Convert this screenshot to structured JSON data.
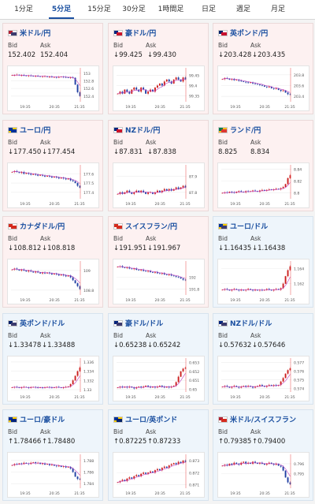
{
  "tabs": [
    {
      "label": "1分足",
      "active": false
    },
    {
      "label": "5分足",
      "active": true
    },
    {
      "label": "15分足",
      "active": false
    },
    {
      "label": "30分足",
      "active": false
    },
    {
      "label": "1時間足",
      "active": false
    },
    {
      "label": "日足",
      "active": false
    },
    {
      "label": "週足",
      "active": false
    },
    {
      "label": "月足",
      "active": false
    }
  ],
  "labels": {
    "bid": "Bid",
    "ask": "Ask"
  },
  "x_ticks": [
    "19:35",
    "20:35",
    "21:35"
  ],
  "colors": {
    "up_candle": "#cc1e1e",
    "down_candle": "#1f3fa3",
    "ma_line": "#c040c0",
    "current_line": "#e84a4a"
  },
  "pairs": [
    {
      "name": "米ドル/円",
      "bid": "152.402",
      "ask": "152.404",
      "direction": "none",
      "bg": "down",
      "flag": [
        "#b22234",
        "#ffffff",
        "#3c3b6e"
      ],
      "chart_data": {
        "type": "candlestick",
        "y_ticks": [
          "153",
          "152.8",
          "152.6",
          "152.4"
        ],
        "ylim": [
          152.25,
          153.1
        ],
        "trend": [
          152.95,
          152.95,
          152.96,
          152.94,
          152.95,
          152.94,
          152.93,
          152.94,
          152.93,
          152.92,
          152.93,
          152.92,
          152.91,
          152.92,
          152.92,
          152.9,
          152.91,
          152.9,
          152.9,
          152.89,
          152.9,
          152.91,
          152.9,
          152.89,
          152.88,
          152.89,
          152.88,
          152.7,
          152.5,
          152.4
        ]
      }
    },
    {
      "name": "豪ドル/円",
      "bid": "99.425",
      "ask": "99.430",
      "direction": "down",
      "bg": "down",
      "flag": [
        "#00247d",
        "#ffffff",
        "#cc142b"
      ],
      "chart_data": {
        "type": "candlestick",
        "y_ticks": [
          "99.45",
          "99.4",
          "99.35"
        ],
        "ylim": [
          99.32,
          99.48
        ],
        "trend": [
          99.36,
          99.37,
          99.36,
          99.38,
          99.37,
          99.36,
          99.38,
          99.39,
          99.38,
          99.37,
          99.39,
          99.38,
          99.36,
          99.37,
          99.38,
          99.37,
          99.39,
          99.4,
          99.41,
          99.4,
          99.42,
          99.43,
          99.42,
          99.41,
          99.43,
          99.44,
          99.43,
          99.42,
          99.44,
          99.43
        ]
      }
    },
    {
      "name": "英ポンド/円",
      "bid": "203.428",
      "ask": "203.435",
      "direction": "down",
      "bg": "down",
      "flag": [
        "#012169",
        "#ffffff",
        "#c8102e"
      ],
      "chart_data": {
        "type": "candlestick",
        "y_ticks": [
          "203.8",
          "203.6",
          "203.4"
        ],
        "ylim": [
          203.3,
          203.9
        ],
        "trend": [
          203.72,
          203.74,
          203.73,
          203.71,
          203.72,
          203.7,
          203.71,
          203.69,
          203.68,
          203.67,
          203.66,
          203.65,
          203.66,
          203.64,
          203.63,
          203.62,
          203.61,
          203.6,
          203.58,
          203.57,
          203.58,
          203.55,
          203.54,
          203.55,
          203.52,
          203.5,
          203.51,
          203.47,
          203.44,
          203.43
        ]
      }
    },
    {
      "name": "ユーロ/円",
      "bid": "177.450",
      "ask": "177.454",
      "direction": "down",
      "bg": "down",
      "flag": [
        "#003399",
        "#ffcc00",
        "#003399"
      ],
      "chart_data": {
        "type": "candlestick",
        "y_ticks": [
          "177.6",
          "177.5",
          "177.4"
        ],
        "ylim": [
          177.33,
          177.68
        ],
        "trend": [
          177.62,
          177.63,
          177.62,
          177.61,
          177.62,
          177.6,
          177.61,
          177.6,
          177.59,
          177.6,
          177.59,
          177.58,
          177.59,
          177.58,
          177.57,
          177.58,
          177.57,
          177.56,
          177.57,
          177.56,
          177.55,
          177.56,
          177.55,
          177.54,
          177.55,
          177.53,
          177.52,
          177.5,
          177.47,
          177.45
        ]
      }
    },
    {
      "name": "NZドル/円",
      "bid": "87.831",
      "ask": "87.838",
      "direction": "down",
      "bg": "down",
      "flag": [
        "#00247d",
        "#ffffff",
        "#cc142b"
      ],
      "chart_data": {
        "type": "candlestick",
        "y_ticks": [
          "87.9",
          "87.8"
        ],
        "ylim": [
          87.76,
          87.96
        ],
        "trend": [
          87.79,
          87.8,
          87.79,
          87.8,
          87.81,
          87.8,
          87.79,
          87.8,
          87.81,
          87.8,
          87.81,
          87.8,
          87.79,
          87.8,
          87.8,
          87.79,
          87.8,
          87.81,
          87.8,
          87.81,
          87.82,
          87.81,
          87.82,
          87.81,
          87.82,
          87.83,
          87.82,
          87.83,
          87.84,
          87.83
        ]
      }
    },
    {
      "name": "ランド/円",
      "bid": "8.825",
      "ask": "8.834",
      "direction": "none",
      "bg": "down",
      "flag": [
        "#007749",
        "#ffb81c",
        "#de3831"
      ],
      "chart_data": {
        "type": "candlestick",
        "y_ticks": [
          "8.84",
          "8.82",
          "8.8"
        ],
        "ylim": [
          8.79,
          8.845
        ],
        "trend": [
          8.8,
          8.801,
          8.8,
          8.802,
          8.801,
          8.8,
          8.802,
          8.803,
          8.802,
          8.801,
          8.803,
          8.802,
          8.803,
          8.804,
          8.803,
          8.802,
          8.804,
          8.805,
          8.804,
          8.805,
          8.806,
          8.805,
          8.806,
          8.807,
          8.806,
          8.808,
          8.81,
          8.815,
          8.825,
          8.83
        ]
      }
    },
    {
      "name": "カナダドル/円",
      "bid": "108.812",
      "ask": "108.818",
      "direction": "down",
      "bg": "down",
      "flag": [
        "#d52b1e",
        "#ffffff",
        "#d52b1e"
      ],
      "chart_data": {
        "type": "candlestick",
        "y_ticks": [
          "109",
          "108.8"
        ],
        "ylim": [
          108.75,
          109.08
        ],
        "trend": [
          109.01,
          109.02,
          109.01,
          109.0,
          109.01,
          109.0,
          108.99,
          109.0,
          108.99,
          108.98,
          108.99,
          108.98,
          108.97,
          108.98,
          108.97,
          108.98,
          108.97,
          108.96,
          108.97,
          108.96,
          108.95,
          108.96,
          108.95,
          108.94,
          108.95,
          108.93,
          108.9,
          108.87,
          108.84,
          108.81
        ]
      }
    },
    {
      "name": "スイスフラン/円",
      "bid": "191.951",
      "ask": "191.967",
      "direction": "down",
      "bg": "down",
      "flag": [
        "#d52b1e",
        "#ffffff",
        "#d52b1e"
      ],
      "chart_data": {
        "type": "candlestick",
        "y_ticks": [
          "192",
          "191.8"
        ],
        "ylim": [
          191.7,
          192.25
        ],
        "trend": [
          192.18,
          192.19,
          192.17,
          192.16,
          192.17,
          192.15,
          192.14,
          192.15,
          192.13,
          192.12,
          192.13,
          192.11,
          192.1,
          192.11,
          192.09,
          192.08,
          192.09,
          192.07,
          192.06,
          192.07,
          192.05,
          192.04,
          192.05,
          192.03,
          192.02,
          192.01,
          192.0,
          191.98,
          191.96,
          191.95
        ]
      }
    },
    {
      "name": "ユーロ/ドル",
      "bid": "1.16435",
      "ask": "1.16438",
      "direction": "down",
      "bg": "up",
      "flag": [
        "#003399",
        "#ffcc00",
        "#3c3b6e"
      ],
      "chart_data": {
        "type": "candlestick",
        "y_ticks": [
          "1.164",
          "1.162"
        ],
        "ylim": [
          1.1605,
          1.1648
        ],
        "trend": [
          1.1612,
          1.1613,
          1.1612,
          1.1611,
          1.1612,
          1.1613,
          1.1612,
          1.1611,
          1.1612,
          1.1611,
          1.1612,
          1.1613,
          1.1612,
          1.1611,
          1.1612,
          1.1611,
          1.1612,
          1.1611,
          1.1612,
          1.1613,
          1.1612,
          1.1611,
          1.1612,
          1.1613,
          1.1612,
          1.1614,
          1.162,
          1.163,
          1.1638,
          1.1643
        ]
      }
    },
    {
      "name": "英ポンド/ドル",
      "bid": "1.33478",
      "ask": "1.33488",
      "direction": "down",
      "bg": "up",
      "flag": [
        "#012169",
        "#ffffff",
        "#3c3b6e"
      ],
      "chart_data": {
        "type": "candlestick",
        "y_ticks": [
          "1.336",
          "1.334",
          "1.332",
          "1.33"
        ],
        "ylim": [
          1.3295,
          1.3365
        ],
        "trend": [
          1.3305,
          1.3306,
          1.3305,
          1.3304,
          1.3305,
          1.3306,
          1.3305,
          1.3304,
          1.3305,
          1.3306,
          1.3305,
          1.3304,
          1.3305,
          1.3304,
          1.3305,
          1.3306,
          1.3305,
          1.3304,
          1.3305,
          1.3306,
          1.3305,
          1.3304,
          1.3305,
          1.3306,
          1.3307,
          1.3312,
          1.332,
          1.333,
          1.334,
          1.3348
        ]
      }
    },
    {
      "name": "豪ドル/ドル",
      "bid": "0.65238",
      "ask": "0.65242",
      "direction": "down",
      "bg": "up",
      "flag": [
        "#00247d",
        "#ffffff",
        "#3c3b6e"
      ],
      "chart_data": {
        "type": "candlestick",
        "y_ticks": [
          "0.653",
          "0.652",
          "0.651",
          "0.65"
        ],
        "ylim": [
          0.6497,
          0.6533
        ],
        "trend": [
          0.6502,
          0.6503,
          0.6502,
          0.6503,
          0.6502,
          0.6503,
          0.6502,
          0.6501,
          0.6502,
          0.6503,
          0.6502,
          0.6503,
          0.6504,
          0.6503,
          0.6502,
          0.6503,
          0.6502,
          0.6503,
          0.6504,
          0.6503,
          0.6502,
          0.6503,
          0.6502,
          0.6503,
          0.6504,
          0.6508,
          0.6514,
          0.652,
          0.6523,
          0.6524
        ]
      }
    },
    {
      "name": "NZドル/ドル",
      "bid": "0.57632",
      "ask": "0.57646",
      "direction": "down",
      "bg": "up",
      "flag": [
        "#00247d",
        "#ffffff",
        "#3c3b6e"
      ],
      "chart_data": {
        "type": "candlestick",
        "y_ticks": [
          "0.577",
          "0.576",
          "0.575",
          "0.574"
        ],
        "ylim": [
          0.5736,
          0.5773
        ],
        "trend": [
          0.5742,
          0.5743,
          0.5742,
          0.5741,
          0.5742,
          0.5743,
          0.5742,
          0.5741,
          0.5742,
          0.5743,
          0.5742,
          0.5743,
          0.5742,
          0.5741,
          0.5742,
          0.5743,
          0.5744,
          0.5743,
          0.5742,
          0.5743,
          0.5744,
          0.5743,
          0.5744,
          0.5743,
          0.5744,
          0.5748,
          0.5752,
          0.5757,
          0.5761,
          0.5763
        ]
      }
    },
    {
      "name": "ユーロ/豪ドル",
      "bid": "1.78466",
      "ask": "1.78480",
      "direction": "up",
      "bg": "up",
      "flag": [
        "#003399",
        "#ffcc00",
        "#00247d"
      ],
      "chart_data": {
        "type": "candlestick",
        "y_ticks": [
          "1.788",
          "1.786",
          "1.784"
        ],
        "ylim": [
          1.7832,
          1.7888
        ],
        "trend": [
          1.7872,
          1.7874,
          1.7873,
          1.7875,
          1.7874,
          1.7876,
          1.7875,
          1.7874,
          1.7876,
          1.7877,
          1.7875,
          1.7876,
          1.7874,
          1.7875,
          1.7873,
          1.7874,
          1.7872,
          1.7873,
          1.7871,
          1.787,
          1.7871,
          1.7869,
          1.787,
          1.7868,
          1.7869,
          1.7866,
          1.786,
          1.7852,
          1.7848,
          1.7847
        ]
      }
    },
    {
      "name": "ユーロ/英ポンド",
      "bid": "0.87225",
      "ask": "0.87233",
      "direction": "up",
      "bg": "up",
      "flag": [
        "#003399",
        "#ffcc00",
        "#012169"
      ],
      "chart_data": {
        "type": "candlestick",
        "y_ticks": [
          "0.873",
          "0.872",
          "0.871"
        ],
        "ylim": [
          0.8707,
          0.8734
        ],
        "trend": [
          0.8712,
          0.8713,
          0.8714,
          0.8713,
          0.8715,
          0.8716,
          0.8715,
          0.8717,
          0.8718,
          0.8717,
          0.8719,
          0.872,
          0.8719,
          0.872,
          0.8721,
          0.872,
          0.8722,
          0.8723,
          0.8722,
          0.8724,
          0.8725,
          0.8724,
          0.8726,
          0.8727,
          0.8728,
          0.8727,
          0.8729,
          0.8728,
          0.873,
          0.8729
        ]
      }
    },
    {
      "name": "米ドル/スイスフラン",
      "bid": "0.79385",
      "ask": "0.79400",
      "direction": "up",
      "bg": "up",
      "flag": [
        "#b22234",
        "#ffffff",
        "#d52b1e"
      ],
      "chart_data": {
        "type": "candlestick",
        "y_ticks": [
          "0.796",
          "0.795"
        ],
        "ylim": [
          0.7935,
          0.7968
        ],
        "trend": [
          0.7958,
          0.7959,
          0.7958,
          0.796,
          0.7959,
          0.7961,
          0.796,
          0.7959,
          0.7961,
          0.7962,
          0.796,
          0.7961,
          0.796,
          0.7962,
          0.7961,
          0.796,
          0.7961,
          0.796,
          0.7959,
          0.796,
          0.7961,
          0.796,
          0.7959,
          0.796,
          0.7958,
          0.7957,
          0.7953,
          0.7946,
          0.7941,
          0.7939
        ]
      }
    }
  ]
}
